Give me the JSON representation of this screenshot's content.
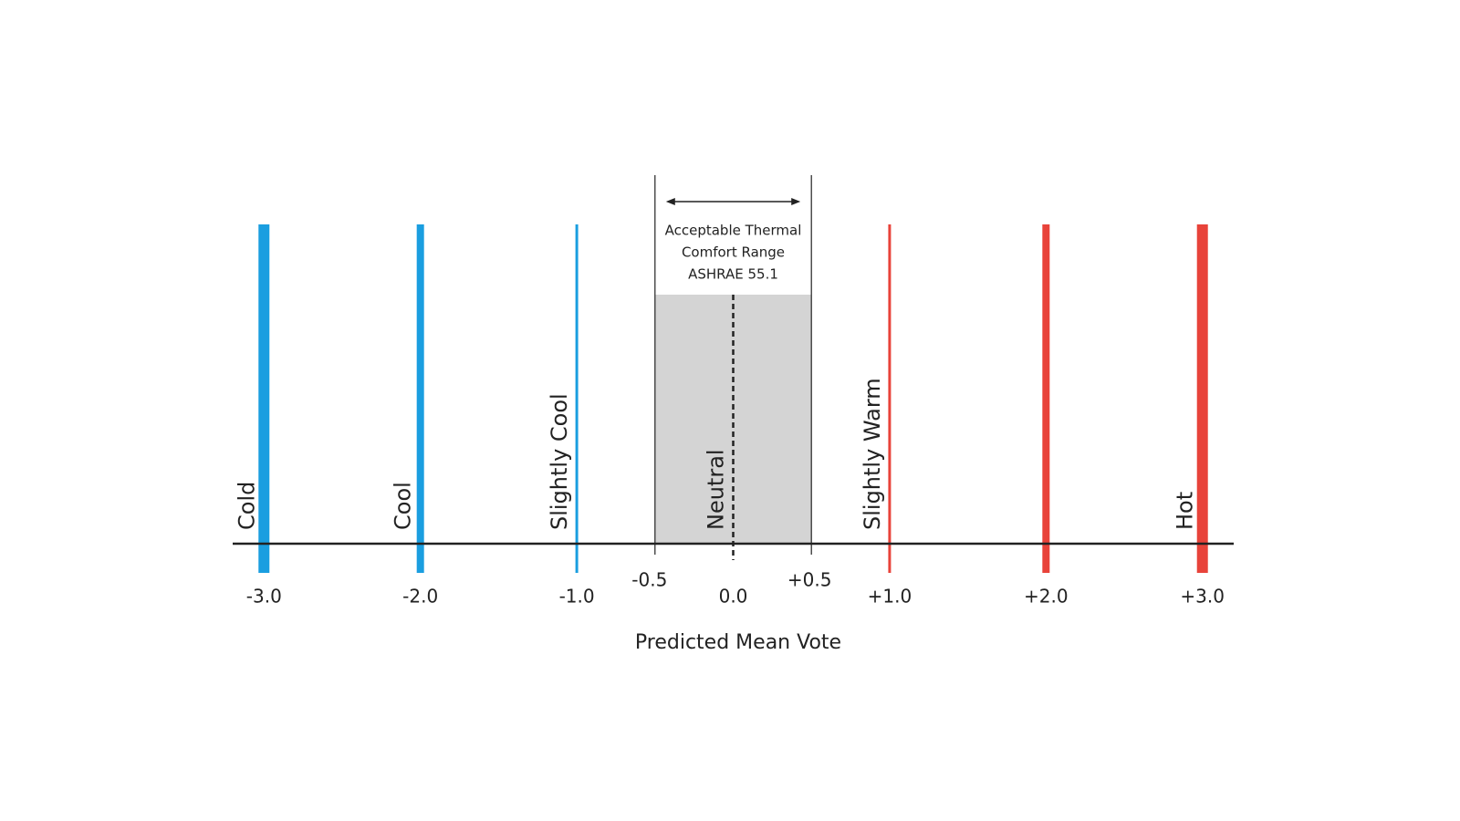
{
  "chart_data": {
    "type": "pmv-scale",
    "xlabel": "Predicted Mean Vote",
    "xlim": [
      -3.2,
      3.2
    ],
    "xticks": [
      {
        "value": -3,
        "label": "-3.0"
      },
      {
        "value": -2,
        "label": "-2.0"
      },
      {
        "value": -1,
        "label": "-1.0"
      },
      {
        "value": 0,
        "label": "0.0"
      },
      {
        "value": 1,
        "label": "+1.0"
      },
      {
        "value": 2,
        "label": "+2.0"
      },
      {
        "value": 3,
        "label": "+3.0"
      }
    ],
    "levels": [
      {
        "name": "Cold",
        "value": -3,
        "color": "#1a9ee0"
      },
      {
        "name": "Cool",
        "value": -2,
        "color": "#1a9ee0"
      },
      {
        "name": "Slightly Cool",
        "value": -1,
        "color": "#1a9ee0"
      },
      {
        "name": "Neutral",
        "value": 0,
        "color": "#222222"
      },
      {
        "name": "Slightly Warm",
        "value": 1,
        "color": "#e8433a"
      },
      {
        "name": "Hot",
        "value": 3,
        "color": "#e8433a"
      },
      {
        "name": null,
        "value": 2,
        "color": "#e8433a"
      }
    ],
    "comfort_range": {
      "label": [
        "Acceptable Thermal",
        "Comfort Range",
        "ASHRAE 55.1"
      ],
      "bounds": [
        {
          "value": -0.5,
          "label": "-0.5"
        },
        {
          "value": 0.5,
          "label": "+0.5"
        }
      ],
      "color": "#d4d4d4"
    }
  }
}
